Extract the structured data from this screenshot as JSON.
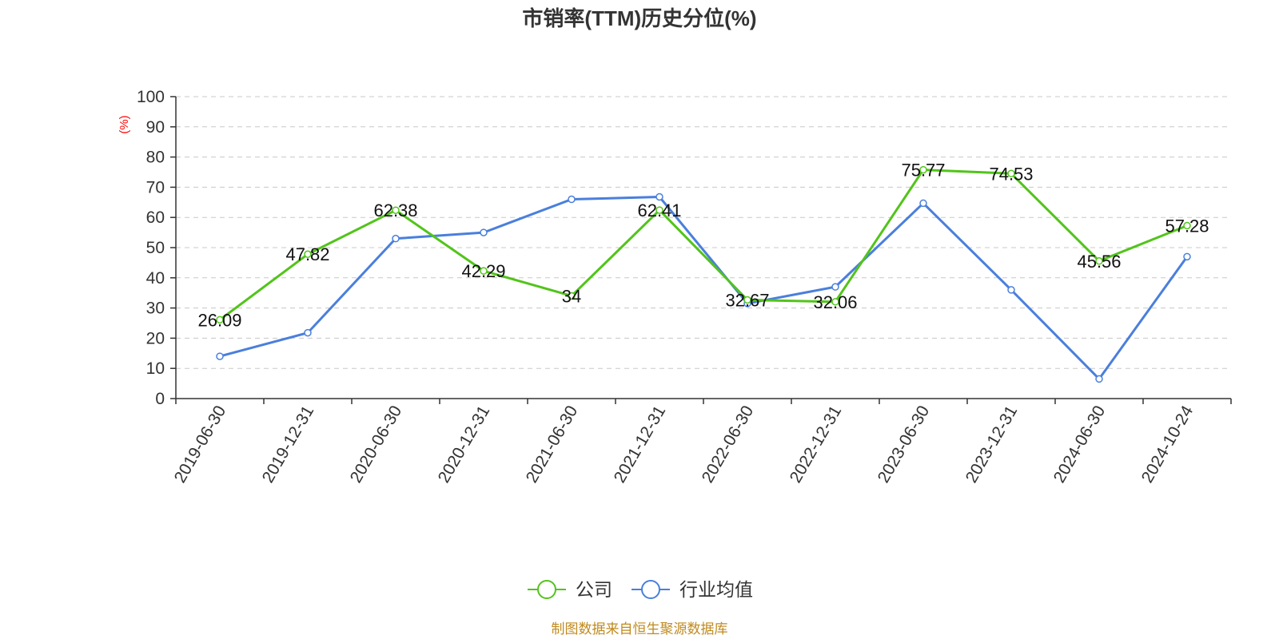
{
  "chart_data": {
    "type": "line",
    "title": "市销率(TTM)历史分位(%)",
    "ylabel": "(%)",
    "ylim": [
      0,
      100
    ],
    "yticks": [
      0,
      10,
      20,
      30,
      40,
      50,
      60,
      70,
      80,
      90,
      100
    ],
    "grid": true,
    "categories": [
      "2019-06-30",
      "2019-12-31",
      "2020-06-30",
      "2020-12-31",
      "2021-06-30",
      "2021-12-31",
      "2022-06-30",
      "2022-12-31",
      "2023-06-30",
      "2023-12-31",
      "2024-06-30",
      "2024-10-24"
    ],
    "series": [
      {
        "name": "公司",
        "color": "#52c41a",
        "values": [
          26.09,
          47.82,
          62.38,
          42.29,
          34,
          62.41,
          32.67,
          32.06,
          75.77,
          74.53,
          45.56,
          57.28
        ],
        "labels": [
          "26.09",
          "47.82",
          "62.38",
          "42.29",
          "34",
          "62.41",
          "32.67",
          "32.06",
          "75.77",
          "74.53",
          "45.56",
          "57.28"
        ]
      },
      {
        "name": "行业均值",
        "color": "#4a7fdc",
        "values": [
          14,
          21.8,
          53,
          55,
          66,
          66.8,
          31.5,
          37,
          64.7,
          36,
          6.5,
          47
        ]
      }
    ],
    "legend_position": "bottom-center"
  },
  "footer": {
    "source": "制图数据来自恒生聚源数据库"
  }
}
